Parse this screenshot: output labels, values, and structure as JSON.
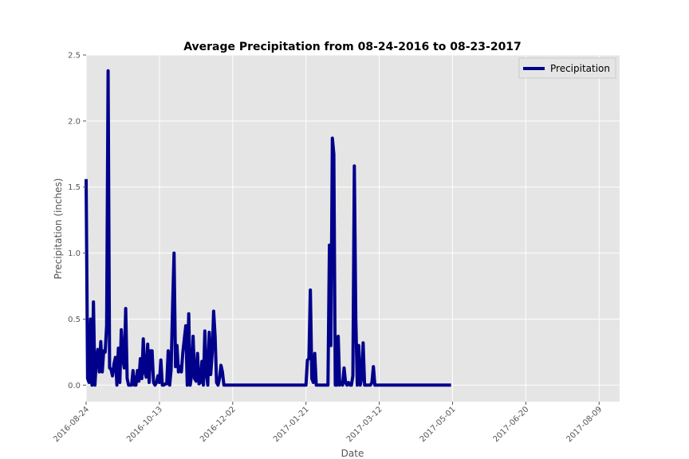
{
  "chart_data": {
    "type": "line",
    "title": "Average Precipitation from 08-24-2016 to 08-23-2017",
    "xlabel": "Date",
    "ylabel": "Precipitation (inches)",
    "x_range": [
      "2016-08-24",
      "2017-08-23"
    ],
    "ylim": [
      -0.125,
      2.5
    ],
    "y_ticks": [
      0.0,
      0.5,
      1.0,
      1.5,
      2.0,
      2.5
    ],
    "y_tick_labels": [
      "0.0",
      "0.5",
      "1.0",
      "1.5",
      "2.0",
      "2.5"
    ],
    "x_ticks": [
      "2016-08-24",
      "2016-10-13",
      "2016-12-02",
      "2017-01-21",
      "2017-03-12",
      "2017-05-01",
      "2017-06-20",
      "2017-08-09"
    ],
    "x_tick_labels": [
      "2016-08-24",
      "2016-10-13",
      "2016-12-02",
      "2017-01-21",
      "2017-03-12",
      "2017-05-01",
      "2017-06-20",
      "2017-08-09"
    ],
    "grid": true,
    "legend_position": "top-right",
    "background_color": "#e5e5e5",
    "grid_color": "#ffffff",
    "series": [
      {
        "name": "Precipitation",
        "color": "#00008b",
        "points": [
          [
            "2016-08-24",
            1.56
          ],
          [
            "2016-08-25",
            0.05
          ],
          [
            "2016-08-26",
            0.02
          ],
          [
            "2016-08-27",
            0.5
          ],
          [
            "2016-08-28",
            0.0
          ],
          [
            "2016-08-29",
            0.63
          ],
          [
            "2016-08-30",
            0.0
          ],
          [
            "2016-08-31",
            0.2
          ],
          [
            "2016-09-01",
            0.27
          ],
          [
            "2016-09-02",
            0.1
          ],
          [
            "2016-09-03",
            0.33
          ],
          [
            "2016-09-04",
            0.1
          ],
          [
            "2016-09-05",
            0.26
          ],
          [
            "2016-09-06",
            0.25
          ],
          [
            "2016-09-07",
            0.45
          ],
          [
            "2016-09-08",
            2.38
          ],
          [
            "2016-09-09",
            0.13
          ],
          [
            "2016-09-10",
            0.12
          ],
          [
            "2016-09-11",
            0.07
          ],
          [
            "2016-09-12",
            0.16
          ],
          [
            "2016-09-13",
            0.21
          ],
          [
            "2016-09-14",
            0.0
          ],
          [
            "2016-09-15",
            0.28
          ],
          [
            "2016-09-16",
            0.02
          ],
          [
            "2016-09-17",
            0.42
          ],
          [
            "2016-09-18",
            0.2
          ],
          [
            "2016-09-19",
            0.13
          ],
          [
            "2016-09-20",
            0.58
          ],
          [
            "2016-09-21",
            0.05
          ],
          [
            "2016-09-22",
            0.0
          ],
          [
            "2016-09-23",
            0.0
          ],
          [
            "2016-09-24",
            0.0
          ],
          [
            "2016-09-25",
            0.11
          ],
          [
            "2016-09-26",
            0.0
          ],
          [
            "2016-09-27",
            0.0
          ],
          [
            "2016-09-28",
            0.11
          ],
          [
            "2016-09-29",
            0.03
          ],
          [
            "2016-09-30",
            0.2
          ],
          [
            "2016-10-01",
            0.05
          ],
          [
            "2016-10-02",
            0.35
          ],
          [
            "2016-10-03",
            0.1
          ],
          [
            "2016-10-04",
            0.06
          ],
          [
            "2016-10-05",
            0.31
          ],
          [
            "2016-10-06",
            0.02
          ],
          [
            "2016-10-07",
            0.26
          ],
          [
            "2016-10-08",
            0.26
          ],
          [
            "2016-10-09",
            0.02
          ],
          [
            "2016-10-10",
            0.0
          ],
          [
            "2016-10-11",
            0.02
          ],
          [
            "2016-10-12",
            0.07
          ],
          [
            "2016-10-13",
            0.02
          ],
          [
            "2016-10-14",
            0.19
          ],
          [
            "2016-10-15",
            0.0
          ],
          [
            "2016-10-16",
            0.0
          ],
          [
            "2016-10-17",
            0.01
          ],
          [
            "2016-10-18",
            0.01
          ],
          [
            "2016-10-19",
            0.26
          ],
          [
            "2016-10-20",
            0.0
          ],
          [
            "2016-10-21",
            0.12
          ],
          [
            "2016-10-22",
            0.6
          ],
          [
            "2016-10-23",
            1.0
          ],
          [
            "2016-10-24",
            0.14
          ],
          [
            "2016-10-25",
            0.3
          ],
          [
            "2016-10-26",
            0.1
          ],
          [
            "2016-10-27",
            0.14
          ],
          [
            "2016-10-28",
            0.1
          ],
          [
            "2016-10-29",
            0.25
          ],
          [
            "2016-10-30",
            0.35
          ],
          [
            "2016-10-31",
            0.45
          ],
          [
            "2016-11-01",
            0.0
          ],
          [
            "2016-11-02",
            0.54
          ],
          [
            "2016-11-03",
            0.0
          ],
          [
            "2016-11-04",
            0.08
          ],
          [
            "2016-11-05",
            0.37
          ],
          [
            "2016-11-06",
            0.05
          ],
          [
            "2016-11-07",
            0.03
          ],
          [
            "2016-11-08",
            0.24
          ],
          [
            "2016-11-09",
            0.01
          ],
          [
            "2016-11-10",
            0.02
          ],
          [
            "2016-11-11",
            0.18
          ],
          [
            "2016-11-12",
            0.0
          ],
          [
            "2016-11-13",
            0.41
          ],
          [
            "2016-11-14",
            0.09
          ],
          [
            "2016-11-15",
            0.0
          ],
          [
            "2016-11-16",
            0.4
          ],
          [
            "2016-11-17",
            0.08
          ],
          [
            "2016-11-18",
            0.24
          ],
          [
            "2016-11-19",
            0.56
          ],
          [
            "2016-11-20",
            0.37
          ],
          [
            "2016-11-21",
            0.02
          ],
          [
            "2016-11-22",
            0.0
          ],
          [
            "2016-11-23",
            0.05
          ],
          [
            "2016-11-24",
            0.15
          ],
          [
            "2016-11-25",
            0.1
          ],
          [
            "2016-11-26",
            0.0
          ],
          [
            "2016-11-27",
            0.0
          ],
          [
            "2016-11-28",
            0.0
          ],
          [
            "2016-11-29",
            0.0
          ],
          [
            "2016-11-30",
            0.0
          ],
          [
            "2016-12-01",
            0.0
          ],
          [
            "2016-12-02",
            0.0
          ],
          [
            "2016-12-03",
            0.0
          ],
          [
            "2016-12-04",
            0.0
          ],
          [
            "2016-12-05",
            0.0
          ],
          [
            "2016-12-06",
            0.0
          ],
          [
            "2016-12-07",
            0.0
          ],
          [
            "2016-12-08",
            0.0
          ],
          [
            "2016-12-09",
            0.0
          ],
          [
            "2016-12-10",
            0.0
          ],
          [
            "2016-12-11",
            0.0
          ],
          [
            "2016-12-12",
            0.0
          ],
          [
            "2016-12-13",
            0.0
          ],
          [
            "2016-12-14",
            0.0
          ],
          [
            "2016-12-15",
            0.0
          ],
          [
            "2016-12-16",
            0.0
          ],
          [
            "2016-12-17",
            0.0
          ],
          [
            "2016-12-18",
            0.0
          ],
          [
            "2016-12-19",
            0.0
          ],
          [
            "2016-12-20",
            0.0
          ],
          [
            "2016-12-21",
            0.0
          ],
          [
            "2016-12-22",
            0.0
          ],
          [
            "2016-12-23",
            0.0
          ],
          [
            "2016-12-24",
            0.0
          ],
          [
            "2016-12-25",
            0.0
          ],
          [
            "2016-12-26",
            0.0
          ],
          [
            "2016-12-27",
            0.0
          ],
          [
            "2016-12-28",
            0.0
          ],
          [
            "2016-12-29",
            0.0
          ],
          [
            "2016-12-30",
            0.0
          ],
          [
            "2016-12-31",
            0.0
          ],
          [
            "2017-01-01",
            0.0
          ],
          [
            "2017-01-02",
            0.0
          ],
          [
            "2017-01-03",
            0.0
          ],
          [
            "2017-01-04",
            0.0
          ],
          [
            "2017-01-05",
            0.0
          ],
          [
            "2017-01-06",
            0.0
          ],
          [
            "2017-01-07",
            0.0
          ],
          [
            "2017-01-08",
            0.0
          ],
          [
            "2017-01-09",
            0.0
          ],
          [
            "2017-01-10",
            0.0
          ],
          [
            "2017-01-11",
            0.0
          ],
          [
            "2017-01-12",
            0.0
          ],
          [
            "2017-01-13",
            0.0
          ],
          [
            "2017-01-14",
            0.0
          ],
          [
            "2017-01-15",
            0.0
          ],
          [
            "2017-01-16",
            0.0
          ],
          [
            "2017-01-17",
            0.0
          ],
          [
            "2017-01-18",
            0.0
          ],
          [
            "2017-01-19",
            0.0
          ],
          [
            "2017-01-20",
            0.0
          ],
          [
            "2017-01-21",
            0.0
          ],
          [
            "2017-01-22",
            0.19
          ],
          [
            "2017-01-23",
            0.2
          ],
          [
            "2017-01-24",
            0.72
          ],
          [
            "2017-01-25",
            0.05
          ],
          [
            "2017-01-26",
            0.02
          ],
          [
            "2017-01-27",
            0.24
          ],
          [
            "2017-01-28",
            0.0
          ],
          [
            "2017-01-29",
            0.0
          ],
          [
            "2017-01-30",
            0.0
          ],
          [
            "2017-01-31",
            0.0
          ],
          [
            "2017-02-01",
            0.0
          ],
          [
            "2017-02-02",
            0.0
          ],
          [
            "2017-02-03",
            0.0
          ],
          [
            "2017-02-04",
            0.0
          ],
          [
            "2017-02-05",
            0.0
          ],
          [
            "2017-02-06",
            1.06
          ],
          [
            "2017-02-07",
            0.3
          ],
          [
            "2017-02-08",
            1.87
          ],
          [
            "2017-02-09",
            1.75
          ],
          [
            "2017-02-10",
            0.0
          ],
          [
            "2017-02-11",
            0.0
          ],
          [
            "2017-02-12",
            0.37
          ],
          [
            "2017-02-13",
            0.0
          ],
          [
            "2017-02-14",
            0.02
          ],
          [
            "2017-02-15",
            0.0
          ],
          [
            "2017-02-16",
            0.13
          ],
          [
            "2017-02-17",
            0.02
          ],
          [
            "2017-02-18",
            0.0
          ],
          [
            "2017-02-19",
            0.02
          ],
          [
            "2017-02-20",
            0.0
          ],
          [
            "2017-02-21",
            0.0
          ],
          [
            "2017-02-22",
            0.07
          ],
          [
            "2017-02-23",
            1.66
          ],
          [
            "2017-02-24",
            0.5
          ],
          [
            "2017-02-25",
            0.0
          ],
          [
            "2017-02-26",
            0.3
          ],
          [
            "2017-02-27",
            0.0
          ],
          [
            "2017-02-28",
            0.05
          ],
          [
            "2017-03-01",
            0.32
          ],
          [
            "2017-03-02",
            0.0
          ],
          [
            "2017-03-03",
            0.0
          ],
          [
            "2017-03-04",
            0.0
          ],
          [
            "2017-03-05",
            0.0
          ],
          [
            "2017-03-06",
            0.0
          ],
          [
            "2017-03-07",
            0.02
          ],
          [
            "2017-03-08",
            0.14
          ],
          [
            "2017-03-09",
            0.0
          ],
          [
            "2017-03-10",
            0.0
          ],
          [
            "2017-03-11",
            0.0
          ],
          [
            "2017-03-12",
            0.0
          ],
          [
            "2017-03-13",
            0.0
          ],
          [
            "2017-03-14",
            0.0
          ],
          [
            "2017-03-15",
            0.0
          ],
          [
            "2017-03-16",
            0.0
          ],
          [
            "2017-03-17",
            0.0
          ],
          [
            "2017-03-18",
            0.0
          ],
          [
            "2017-03-19",
            0.0
          ],
          [
            "2017-03-20",
            0.0
          ],
          [
            "2017-03-21",
            0.0
          ],
          [
            "2017-03-22",
            0.0
          ],
          [
            "2017-03-23",
            0.0
          ],
          [
            "2017-03-24",
            0.0
          ],
          [
            "2017-03-25",
            0.0
          ],
          [
            "2017-03-26",
            0.0
          ],
          [
            "2017-03-27",
            0.0
          ],
          [
            "2017-03-28",
            0.0
          ],
          [
            "2017-03-29",
            0.0
          ],
          [
            "2017-03-30",
            0.0
          ],
          [
            "2017-03-31",
            0.0
          ],
          [
            "2017-04-01",
            0.0
          ],
          [
            "2017-04-02",
            0.0
          ],
          [
            "2017-04-03",
            0.0
          ],
          [
            "2017-04-04",
            0.0
          ],
          [
            "2017-04-05",
            0.0
          ],
          [
            "2017-04-06",
            0.0
          ],
          [
            "2017-04-07",
            0.0
          ],
          [
            "2017-04-08",
            0.0
          ],
          [
            "2017-04-09",
            0.0
          ],
          [
            "2017-04-10",
            0.0
          ],
          [
            "2017-04-11",
            0.0
          ],
          [
            "2017-04-12",
            0.0
          ],
          [
            "2017-04-13",
            0.0
          ],
          [
            "2017-04-14",
            0.0
          ],
          [
            "2017-04-15",
            0.0
          ],
          [
            "2017-04-16",
            0.0
          ],
          [
            "2017-04-17",
            0.0
          ],
          [
            "2017-04-18",
            0.0
          ],
          [
            "2017-04-19",
            0.0
          ],
          [
            "2017-04-20",
            0.0
          ],
          [
            "2017-04-21",
            0.0
          ],
          [
            "2017-04-22",
            0.0
          ],
          [
            "2017-04-23",
            0.0
          ],
          [
            "2017-04-24",
            0.0
          ],
          [
            "2017-04-25",
            0.0
          ],
          [
            "2017-04-26",
            0.0
          ],
          [
            "2017-04-27",
            0.0
          ],
          [
            "2017-04-28",
            0.0
          ],
          [
            "2017-04-29",
            0.0
          ],
          [
            "2017-04-30",
            0.0
          ]
        ]
      }
    ]
  }
}
